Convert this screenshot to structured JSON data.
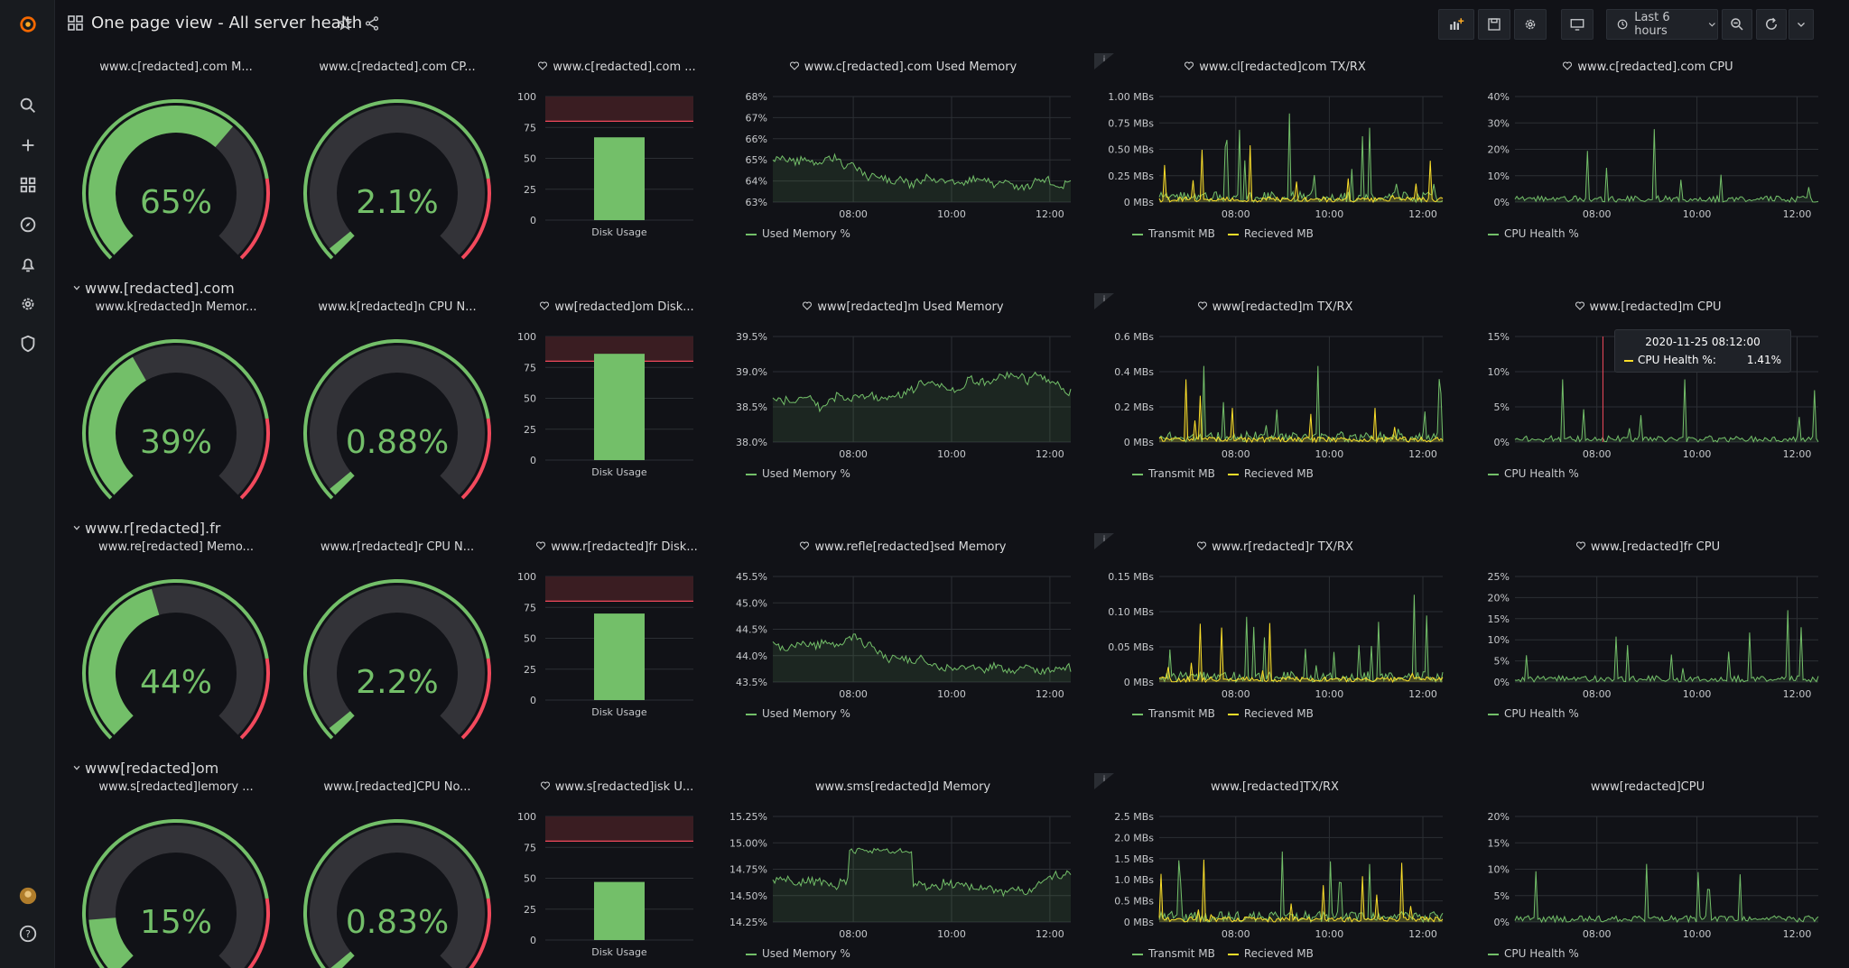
{
  "header": {
    "title": "One page view - All server health",
    "time_range": "Last 6 hours"
  },
  "sidebar": {
    "icons": [
      "grafana-logo-icon",
      "search-icon",
      "plus-icon",
      "dashboards-icon",
      "explore-icon",
      "alert-bell-icon",
      "gear-icon",
      "shield-icon",
      "user-avatar-icon",
      "help-icon"
    ]
  },
  "colors": {
    "green": "#73bf69",
    "red": "#f2495c",
    "yellow": "#fade2a",
    "track": "#333338",
    "grid": "#2c2f34"
  },
  "x_ticks": [
    "08:00",
    "10:00",
    "12:00"
  ],
  "rows": [
    {
      "row_title": "",
      "gauge_memory": {
        "title": "www.c[redacted].com M...",
        "value": 65,
        "label": "65%"
      },
      "gauge_cpu": {
        "title": "www.c[redacted].com CP...",
        "value": 2.1,
        "label": "2.1%"
      },
      "disk": {
        "title": "www.c[redacted].com ...",
        "value": 67,
        "ticks": [
          "100",
          "75",
          "50",
          "25",
          "0"
        ],
        "label": "Disk Usage"
      },
      "memory": {
        "title": "www.c[redacted].com Used Memory",
        "yticks": [
          "68%",
          "67%",
          "66%",
          "65%",
          "64%",
          "63%"
        ],
        "legend": "Used Memory %"
      },
      "net": {
        "title": "www.cl[redacted]com TX/RX",
        "yticks": [
          "1.00 MBs",
          "0.75 MBs",
          "0.50 MBs",
          "0.25 MBs",
          "0 MBs"
        ],
        "legend_tx": "Transmit MB",
        "legend_rx": "Recieved MB"
      },
      "cpu": {
        "title": "www.c[redacted].com CPU",
        "yticks": [
          "40%",
          "30%",
          "20%",
          "10%",
          "0%"
        ],
        "legend": "CPU Health %"
      }
    },
    {
      "row_title": "www.[redacted].com",
      "gauge_memory": {
        "title": "www.k[redacted]n Memor...",
        "value": 39,
        "label": "39%"
      },
      "gauge_cpu": {
        "title": "www.k[redacted]n CPU N...",
        "value": 0.88,
        "label": "0.88%"
      },
      "disk": {
        "title": "ww[redacted]om Disk...",
        "value": 86,
        "ticks": [
          "100",
          "75",
          "50",
          "25",
          "0"
        ],
        "label": "Disk Usage"
      },
      "memory": {
        "title": "www[redacted]m Used Memory",
        "yticks": [
          "39.5%",
          "39.0%",
          "38.5%",
          "38.0%"
        ],
        "legend": "Used Memory %"
      },
      "net": {
        "title": "www[redacted]m TX/RX",
        "yticks": [
          "0.6 MBs",
          "0.4 MBs",
          "0.2 MBs",
          "0 MBs"
        ],
        "legend_tx": "Transmit MB",
        "legend_rx": "Recieved MB"
      },
      "cpu": {
        "title": "www.[redacted]m CPU",
        "yticks": [
          "15%",
          "10%",
          "5%",
          "0%"
        ],
        "legend": "CPU Health %",
        "tooltip": {
          "time": "2020-11-25 08:12:00",
          "series": "CPU Health %:",
          "value": "1.41%"
        }
      }
    },
    {
      "row_title": "www.r[redacted].fr",
      "gauge_memory": {
        "title": "www.re[redacted] Memo...",
        "value": 44,
        "label": "44%"
      },
      "gauge_cpu": {
        "title": "www.r[redacted]r CPU N...",
        "value": 2.2,
        "label": "2.2%"
      },
      "disk": {
        "title": "www.r[redacted]fr Disk...",
        "value": 70,
        "ticks": [
          "100",
          "75",
          "50",
          "25",
          "0"
        ],
        "label": "Disk Usage"
      },
      "memory": {
        "title": "www.refle[redacted]sed Memory",
        "yticks": [
          "45.5%",
          "45.0%",
          "44.5%",
          "44.0%",
          "43.5%"
        ],
        "legend": "Used Memory %"
      },
      "net": {
        "title": "www.r[redacted]r TX/RX",
        "yticks": [
          "0.15 MBs",
          "0.10 MBs",
          "0.05 MBs",
          "0 MBs"
        ],
        "legend_tx": "Transmit MB",
        "legend_rx": "Recieved MB"
      },
      "cpu": {
        "title": "www.[redacted]fr CPU",
        "yticks": [
          "25%",
          "20%",
          "15%",
          "10%",
          "5%",
          "0%"
        ],
        "legend": "CPU Health %"
      }
    },
    {
      "row_title": "www[redacted]om",
      "gauge_memory": {
        "title": "www.s[redacted]lemory ...",
        "value": 15,
        "label": "15%"
      },
      "gauge_cpu": {
        "title": "www.[redacted]CPU No...",
        "value": 0.83,
        "label": "0.83%"
      },
      "disk": {
        "title": "www.s[redacted]isk U...",
        "value": 47,
        "ticks": [
          "100",
          "75",
          "50",
          "25",
          "0"
        ],
        "label": "Disk Usage"
      },
      "memory": {
        "title": "www.sms[redacted]d Memory",
        "yticks": [
          "15.25%",
          "15.00%",
          "14.75%",
          "14.50%",
          "14.25%"
        ],
        "legend": "Used Memory %"
      },
      "net": {
        "title": "www.[redacted]TX/RX",
        "yticks": [
          "2.5 MBs",
          "2.0 MBs",
          "1.5 MBs",
          "1.0 MBs",
          "0.5 MBs",
          "0 MBs"
        ],
        "legend_tx": "Transmit MB",
        "legend_rx": "Recieved MB"
      },
      "cpu": {
        "title": "www[redacted]CPU",
        "yticks": [
          "20%",
          "15%",
          "10%",
          "5%",
          "0%"
        ],
        "legend": "CPU Health %"
      }
    }
  ]
}
